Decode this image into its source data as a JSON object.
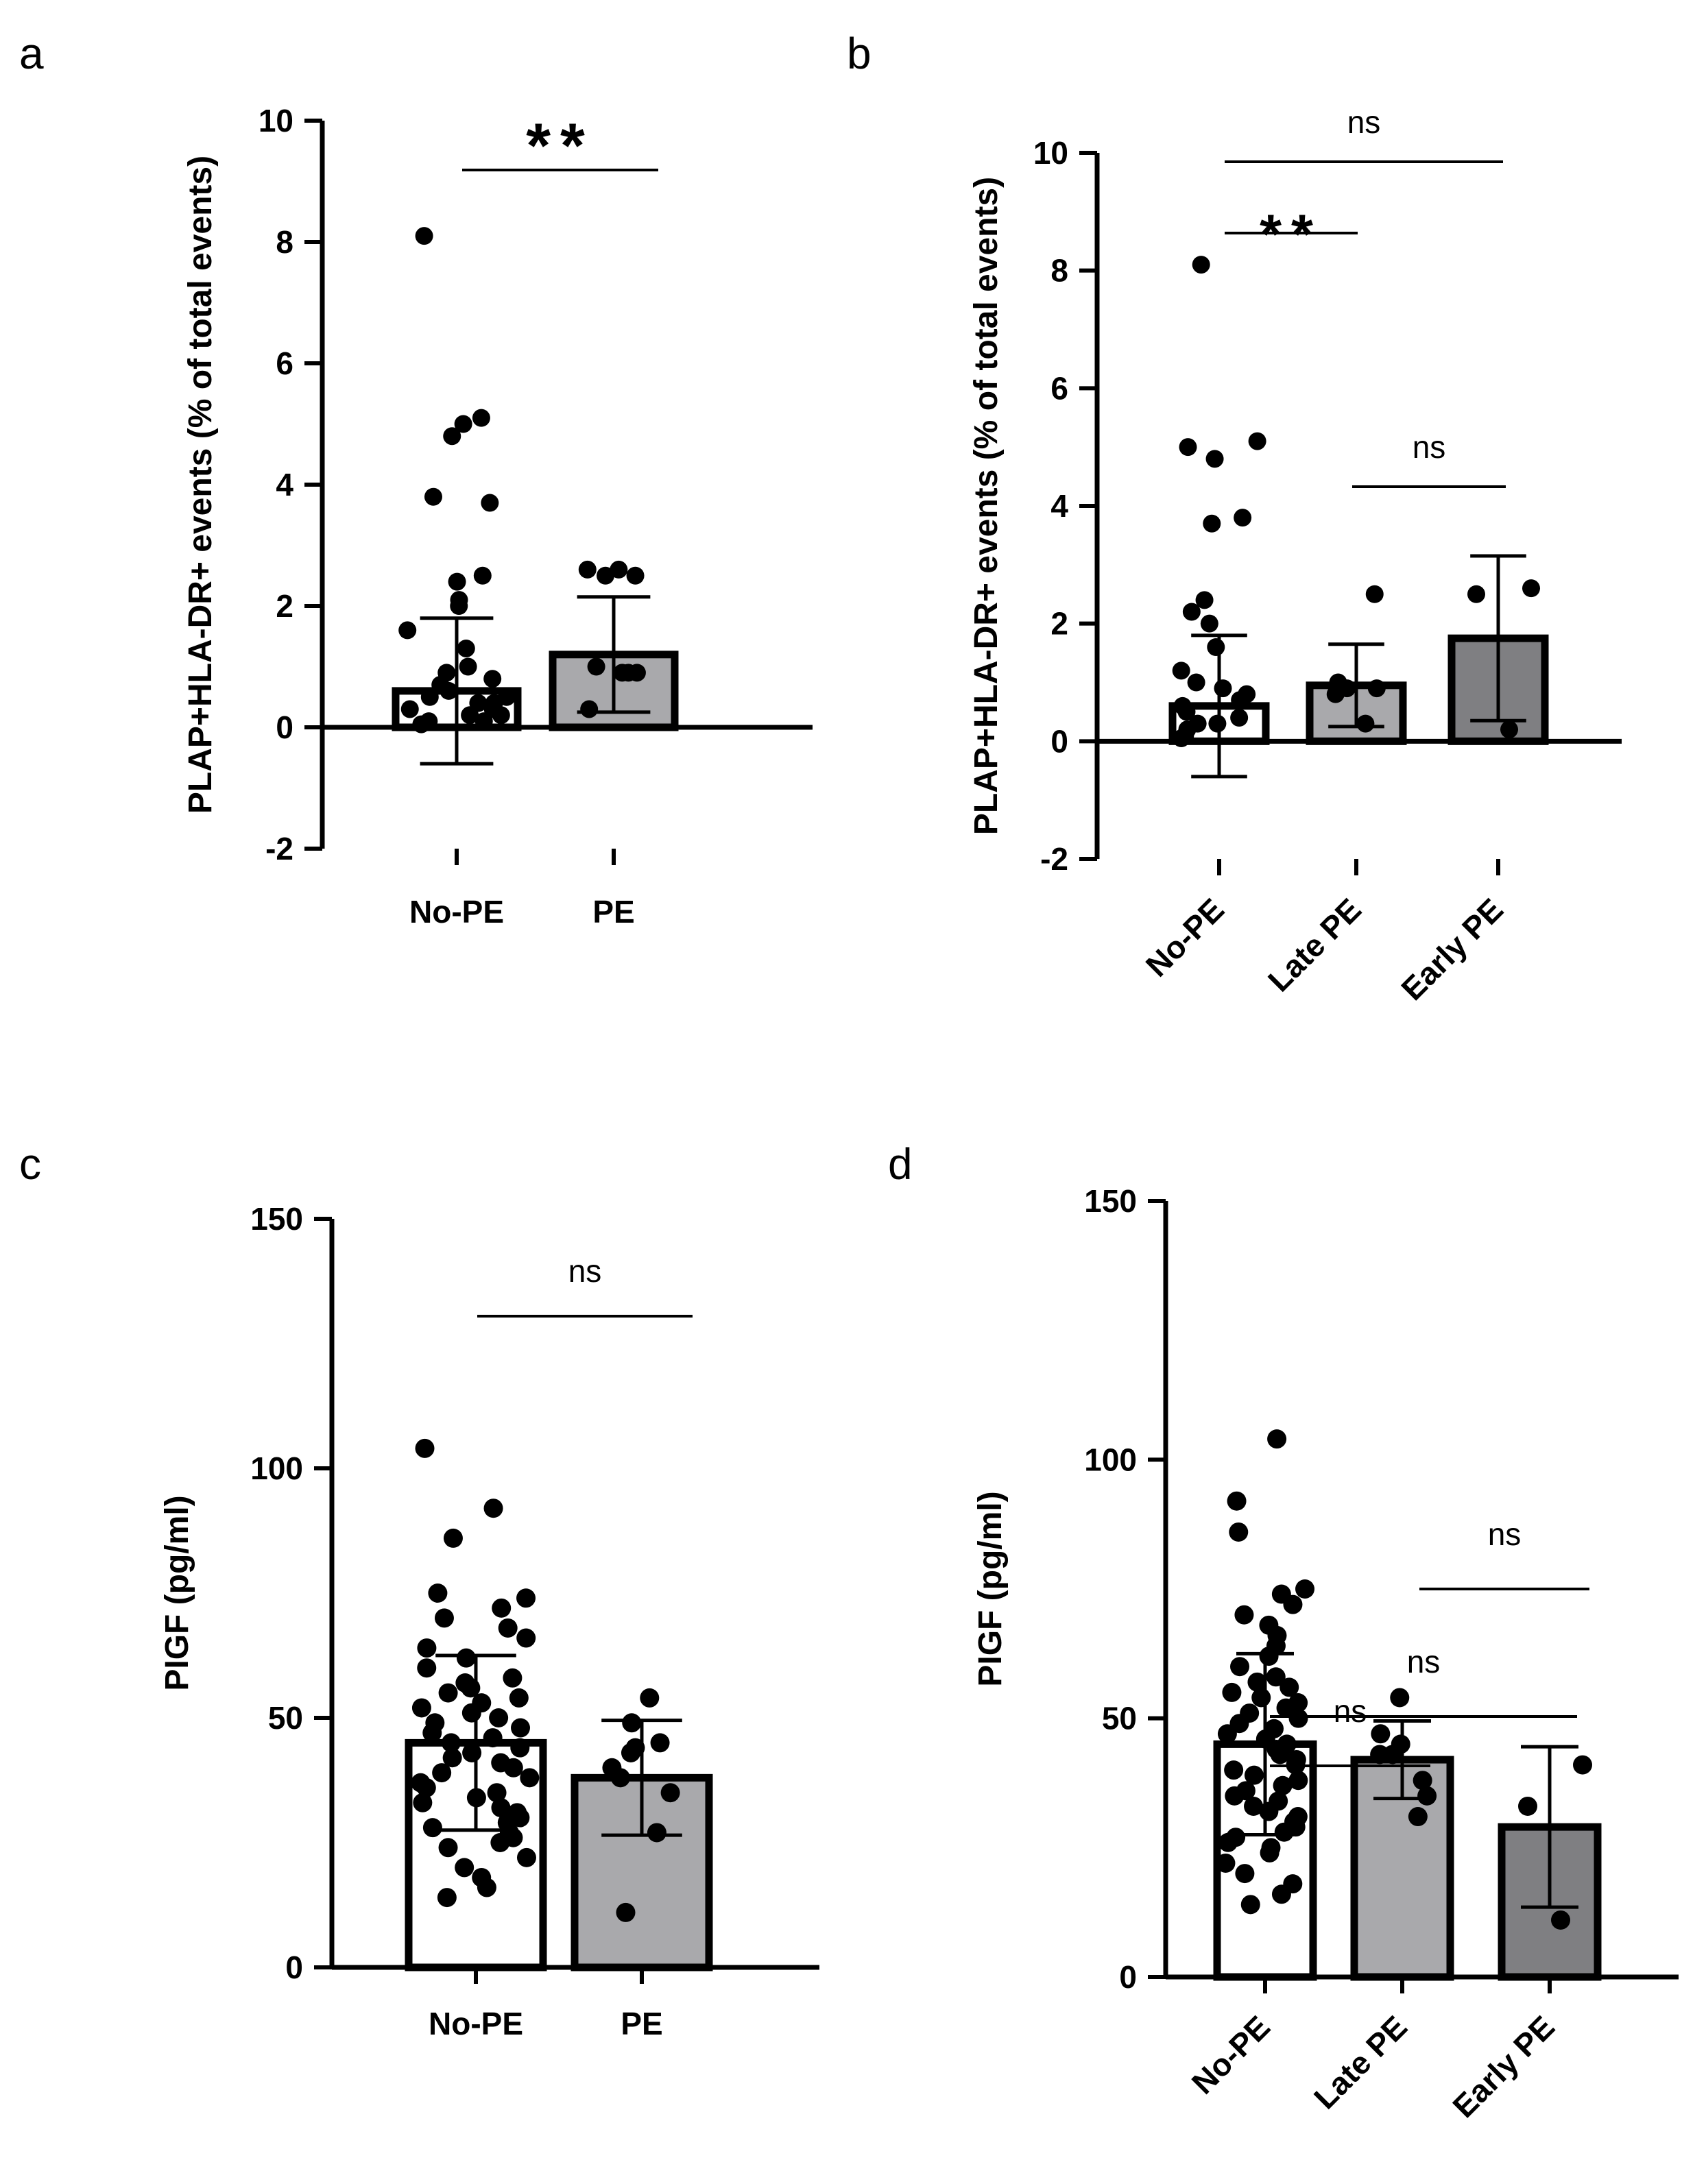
{
  "chart_data": [
    {
      "panel": "a",
      "type": "bar",
      "ylabel": "PLAP+HLA-DR+ events (% of total events)",
      "ylim": [
        -2,
        10
      ],
      "yticks": [
        -2,
        0,
        2,
        4,
        6,
        8,
        10
      ],
      "categories": [
        "No-PE",
        "PE"
      ],
      "values": [
        0.6,
        1.2
      ],
      "error": [
        1.2,
        0.95
      ],
      "fills": [
        "#ffffff",
        "#a9a9ac"
      ],
      "points": [
        [
          8.1,
          5.1,
          5.0,
          4.8,
          3.8,
          3.7,
          2.5,
          2.4,
          2.1,
          2.0,
          1.6,
          1.3,
          1.0,
          0.9,
          0.8,
          0.7,
          0.6,
          0.5,
          0.5,
          0.4,
          0.4,
          0.3,
          0.3,
          0.2,
          0.2,
          0.1,
          0.1,
          0.05
        ],
        [
          2.6,
          2.6,
          2.5,
          2.5,
          1.0,
          0.9,
          0.9,
          0.9,
          0.3
        ]
      ],
      "comparisons": [
        {
          "from": "No-PE",
          "to": "PE",
          "label": "**"
        }
      ]
    },
    {
      "panel": "b",
      "type": "bar",
      "ylabel": "PLAP+HLA-DR+ events (% of total events)",
      "ylim": [
        -2,
        10
      ],
      "yticks": [
        -2,
        0,
        2,
        4,
        6,
        8,
        10
      ],
      "categories": [
        "No-PE",
        "Late PE",
        "Early PE"
      ],
      "values": [
        0.6,
        0.95,
        1.75
      ],
      "error": [
        1.2,
        0.7,
        1.4
      ],
      "fills": [
        "#ffffff",
        "#a9a9ac",
        "#7f7f82"
      ],
      "points": [
        [
          8.1,
          5.1,
          5.0,
          4.8,
          3.8,
          3.7,
          2.4,
          2.2,
          2.0,
          1.6,
          1.2,
          1.0,
          0.9,
          0.8,
          0.7,
          0.6,
          0.5,
          0.4,
          0.3,
          0.3,
          0.2,
          0.1,
          0.05
        ],
        [
          2.5,
          1.0,
          0.9,
          0.9,
          0.8,
          0.3
        ],
        [
          2.6,
          2.5,
          0.2
        ]
      ],
      "comparisons": [
        {
          "from": "No-PE",
          "to": "Late PE",
          "label": "**"
        },
        {
          "from": "No-PE",
          "to": "Early PE",
          "label": "ns"
        },
        {
          "from": "Late PE",
          "to": "Early PE",
          "label": "ns"
        }
      ]
    },
    {
      "panel": "c",
      "type": "bar",
      "ylabel": "PIGF (pg/ml)",
      "ylim": [
        0,
        150
      ],
      "yticks": [
        0,
        50,
        100,
        150
      ],
      "categories": [
        "No-PE",
        "PE"
      ],
      "values": [
        45,
        38
      ],
      "error": [
        17.5,
        11.5
      ],
      "fills": [
        "#ffffff",
        "#a9a9ac"
      ],
      "points": [
        [
          104,
          92,
          86,
          75,
          74,
          72,
          70,
          68,
          66,
          64,
          62,
          60,
          58,
          57,
          56,
          55,
          54,
          53,
          52,
          51,
          50,
          49,
          48,
          47,
          46,
          45,
          44,
          43,
          42,
          41,
          40,
          39,
          38,
          37,
          36,
          35,
          34,
          33,
          32,
          31,
          30,
          29,
          28,
          27,
          26,
          25,
          24,
          22,
          20,
          18,
          16,
          14
        ],
        [
          54,
          49,
          45,
          44,
          43,
          40,
          38,
          35,
          27,
          11
        ]
      ],
      "comparisons": [
        {
          "from": "No-PE",
          "to": "PE",
          "label": "ns"
        }
      ]
    },
    {
      "panel": "d",
      "type": "bar",
      "ylabel": "PIGF (pg/ml)",
      "ylim": [
        0,
        150
      ],
      "yticks": [
        0,
        50,
        100,
        150
      ],
      "categories": [
        "No-PE",
        "Late PE",
        "Early PE"
      ],
      "values": [
        45,
        42,
        29
      ],
      "error": [
        17.5,
        7.5,
        15.5
      ],
      "fills": [
        "#ffffff",
        "#a9a9ac",
        "#7f7f82"
      ],
      "points": [
        [
          104,
          92,
          86,
          75,
          74,
          72,
          70,
          68,
          66,
          64,
          62,
          60,
          58,
          57,
          56,
          55,
          54,
          53,
          52,
          51,
          50,
          49,
          48,
          47,
          46,
          45,
          44,
          43,
          42,
          41,
          40,
          39,
          38,
          37,
          36,
          35,
          34,
          33,
          32,
          31,
          30,
          29,
          28,
          27,
          26,
          25,
          24,
          22,
          20,
          18,
          16,
          14
        ],
        [
          54,
          47,
          45,
          43,
          43,
          38,
          35,
          31
        ],
        [
          41,
          33,
          11
        ]
      ],
      "comparisons": [
        {
          "from": "No-PE",
          "to": "Late PE",
          "label": "ns"
        },
        {
          "from": "No-PE",
          "to": "Early PE",
          "label": "ns"
        },
        {
          "from": "Late PE",
          "to": "Early PE",
          "label": "ns"
        }
      ]
    }
  ]
}
